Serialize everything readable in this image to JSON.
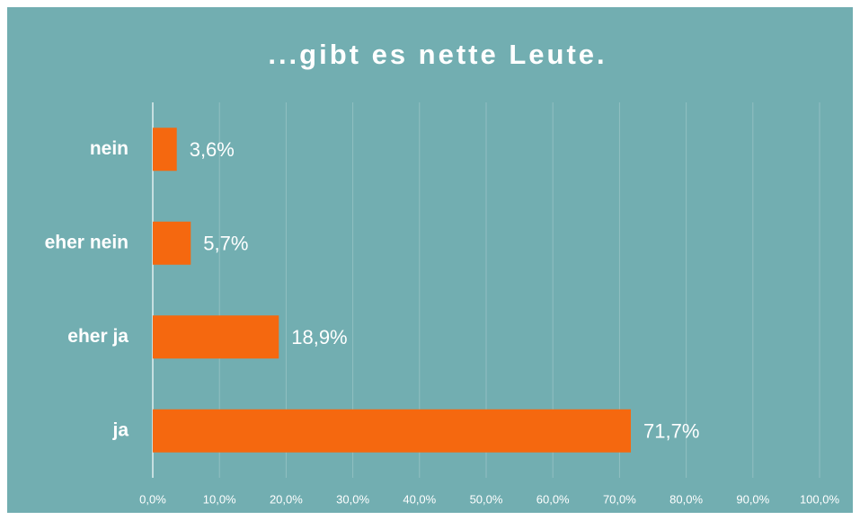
{
  "chart_data": {
    "type": "bar",
    "orientation": "horizontal",
    "title": "...gibt es nette Leute.",
    "categories": [
      "nein",
      "eher nein",
      "eher ja",
      "ja"
    ],
    "values": [
      3.6,
      5.7,
      18.9,
      71.7
    ],
    "value_labels": [
      "3,6%",
      "5,7%",
      "18,9%",
      "71,7%"
    ],
    "color": "#f5680f",
    "xlim": [
      0,
      100
    ],
    "xticks": [
      {
        "value": 0,
        "label": "0,0%"
      },
      {
        "value": 10,
        "label": "10,0%"
      },
      {
        "value": 20,
        "label": "20,0%"
      },
      {
        "value": 30,
        "label": "30,0%"
      },
      {
        "value": 40,
        "label": "40,0%"
      },
      {
        "value": 50,
        "label": "50,0%"
      },
      {
        "value": 60,
        "label": "60,0%"
      },
      {
        "value": 70,
        "label": "70,0%"
      },
      {
        "value": 80,
        "label": "80,0%"
      },
      {
        "value": 90,
        "label": "90,0%"
      },
      {
        "value": 100,
        "label": "100,0%"
      }
    ],
    "grid": true
  }
}
